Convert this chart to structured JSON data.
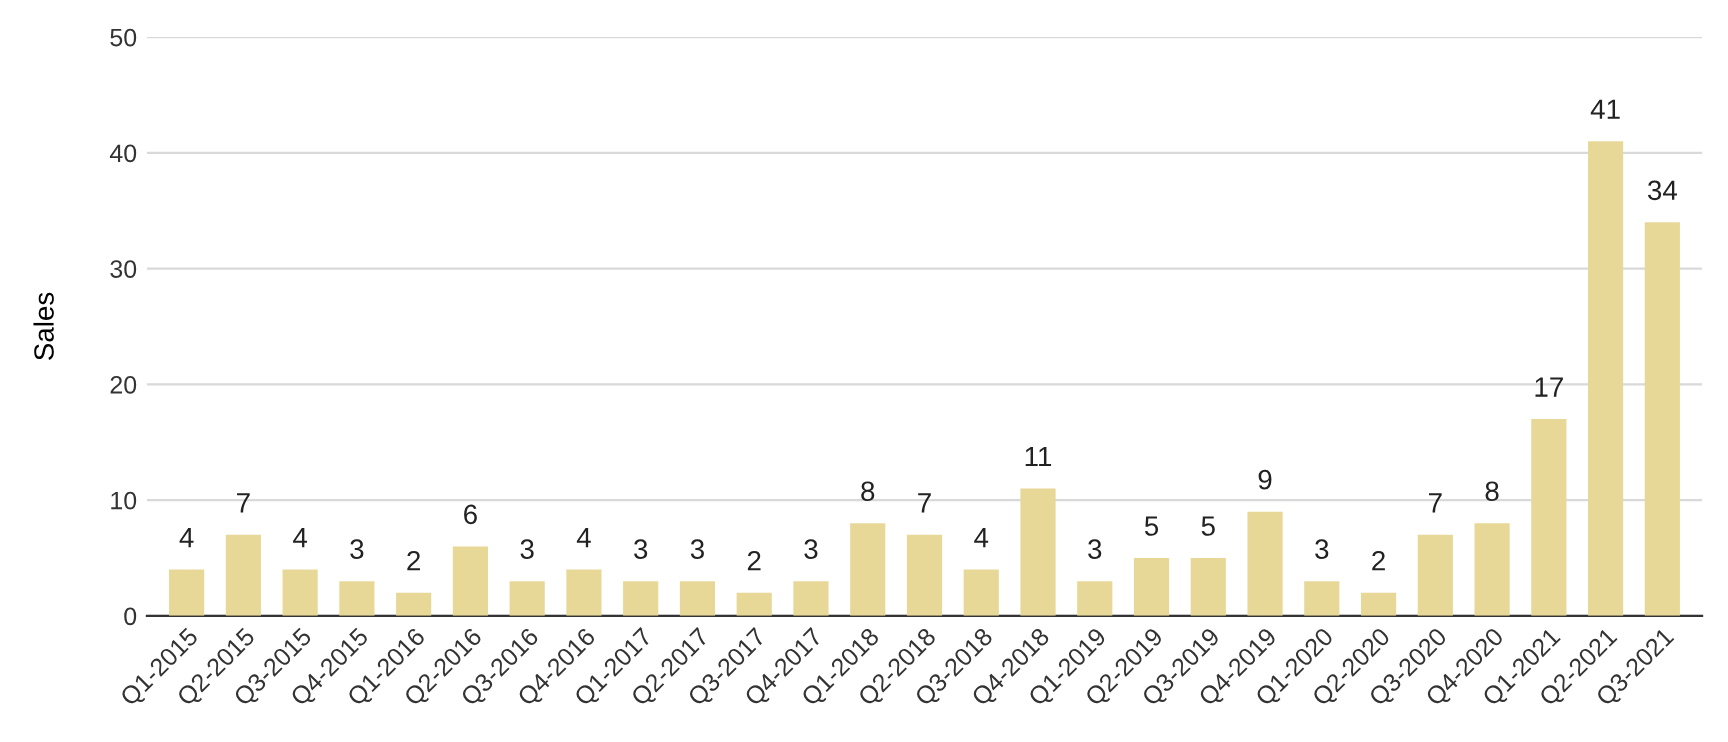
{
  "chart_data": {
    "type": "bar",
    "ylabel": "Sales",
    "categories": [
      "Q1-2015",
      "Q2-2015",
      "Q3-2015",
      "Q4-2015",
      "Q1-2016",
      "Q2-2016",
      "Q3-2016",
      "Q4-2016",
      "Q1-2017",
      "Q2-2017",
      "Q3-2017",
      "Q4-2017",
      "Q1-2018",
      "Q2-2018",
      "Q3-2018",
      "Q4-2018",
      "Q1-2019",
      "Q2-2019",
      "Q3-2019",
      "Q4-2019",
      "Q1-2020",
      "Q2-2020",
      "Q3-2020",
      "Q4-2020",
      "Q1-2021",
      "Q2-2021",
      "Q3-2021"
    ],
    "values": [
      4,
      7,
      4,
      3,
      2,
      6,
      3,
      4,
      3,
      3,
      2,
      3,
      8,
      7,
      4,
      11,
      3,
      5,
      5,
      9,
      3,
      2,
      7,
      8,
      17,
      41,
      34
    ],
    "color": "#e8d898",
    "ylim": [
      0,
      50
    ],
    "yticks": [
      0,
      10,
      20,
      30,
      40,
      50
    ],
    "grid": "y",
    "data_labels": true,
    "legend": false
  }
}
